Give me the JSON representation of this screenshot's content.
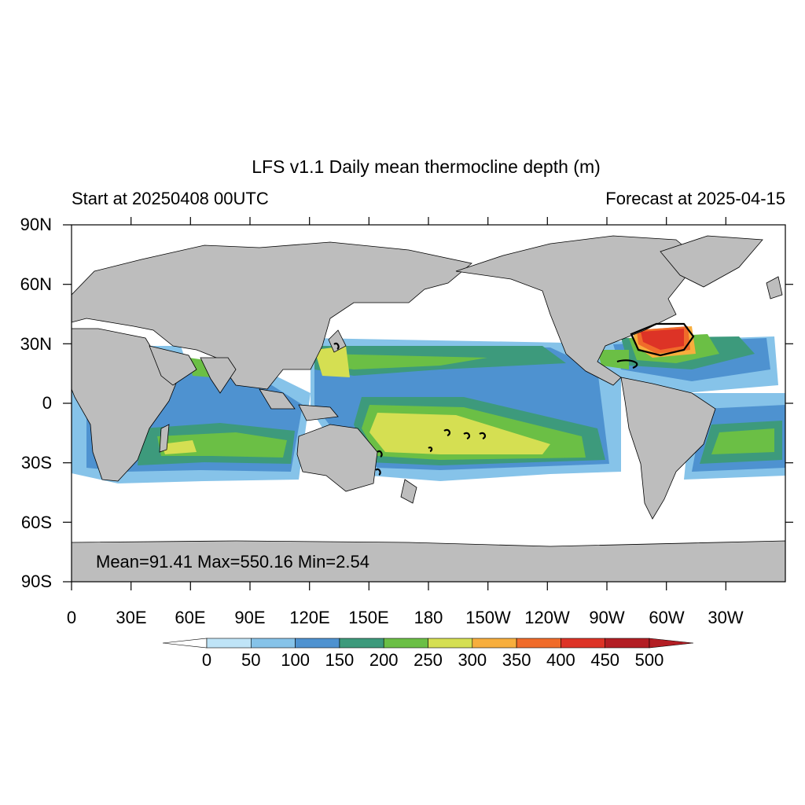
{
  "title": "LFS v1.1 Daily mean thermocline depth (m)",
  "subtitle_left": "Start at 20250408 00UTC",
  "subtitle_right": "Forecast at 2025-04-15",
  "stats": "Mean=91.41  Max=550.16  Min=2.54",
  "lat_labels": [
    "90N",
    "60N",
    "30N",
    "0",
    "30S",
    "60S",
    "90S"
  ],
  "lon_labels": [
    "0",
    "30E",
    "60E",
    "90E",
    "120E",
    "150E",
    "180",
    "150W",
    "120W",
    "90W",
    "60W",
    "30W"
  ],
  "colorbar": {
    "labels": [
      "0",
      "50",
      "100",
      "150",
      "200",
      "250",
      "300",
      "350",
      "400",
      "450",
      "500"
    ],
    "colors": [
      "#ffffff",
      "#bfe4f7",
      "#86c3e9",
      "#4e92d0",
      "#3d9a7c",
      "#6bbf45",
      "#d5df52",
      "#f7ae3d",
      "#f06b2a",
      "#dd3326",
      "#b31e24",
      "#b31e24"
    ]
  },
  "colors": {
    "land": "#bdbdbd",
    "coastline": "#000000",
    "ocean_missing": "#ffffff"
  }
}
